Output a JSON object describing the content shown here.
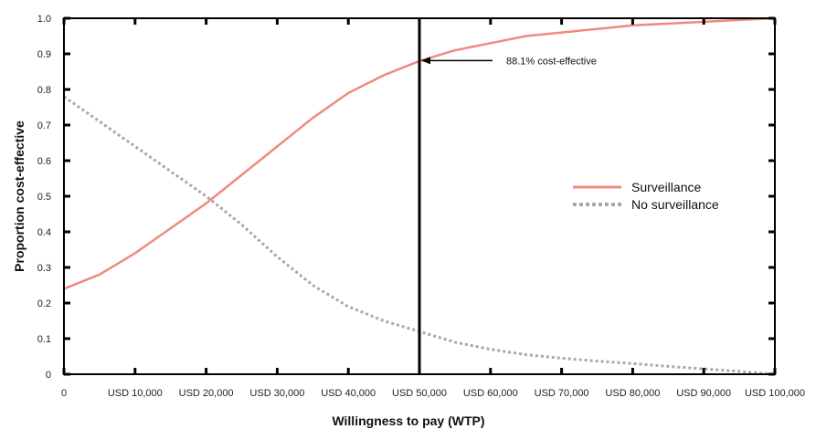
{
  "chart_data": {
    "type": "line",
    "title": "",
    "xlabel": "Willingness to pay (WTP)",
    "ylabel": "Proportion cost-effective",
    "xlim": [
      0,
      100000
    ],
    "ylim": [
      0,
      1.0
    ],
    "x_ticks": [
      0,
      10000,
      20000,
      30000,
      40000,
      50000,
      60000,
      70000,
      80000,
      90000,
      100000
    ],
    "x_tick_labels": [
      "0",
      "USD 10,000",
      "USD 20,000",
      "USD 30,000",
      "USD 40,000",
      "USD 50,000",
      "USD 60,000",
      "USD 70,000",
      "USD 80,000",
      "USD 90,000",
      "USD 100,000"
    ],
    "y_ticks": [
      0,
      0.1,
      0.2,
      0.3,
      0.4,
      0.5,
      0.6,
      0.7,
      0.8,
      0.9,
      1.0
    ],
    "y_tick_labels": [
      "0",
      "0.1",
      "0.2",
      "0.3",
      "0.4",
      "0.5",
      "0.6",
      "0.7",
      "0.8",
      "0.9",
      "1.0"
    ],
    "grid": false,
    "legend_position": "right",
    "x": [
      0,
      5000,
      10000,
      15000,
      20000,
      25000,
      30000,
      35000,
      40000,
      45000,
      50000,
      55000,
      60000,
      65000,
      70000,
      75000,
      80000,
      85000,
      90000,
      95000,
      100000
    ],
    "series": [
      {
        "name": "Surveillance",
        "style": "solid",
        "color": "#ef8a80",
        "values": [
          0.24,
          0.28,
          0.34,
          0.41,
          0.48,
          0.56,
          0.64,
          0.72,
          0.79,
          0.84,
          0.88,
          0.91,
          0.93,
          0.95,
          0.96,
          0.97,
          0.98,
          0.985,
          0.99,
          0.995,
          1.0
        ]
      },
      {
        "name": "No surveillance",
        "style": "dotted",
        "color": "#a8a8a8",
        "values": [
          0.78,
          0.71,
          0.64,
          0.57,
          0.5,
          0.42,
          0.33,
          0.25,
          0.19,
          0.15,
          0.12,
          0.09,
          0.07,
          0.055,
          0.045,
          0.037,
          0.03,
          0.022,
          0.015,
          0.008,
          0.0
        ]
      }
    ],
    "reference_line": {
      "x": 50000,
      "color": "#000000"
    },
    "annotation": {
      "text": "88.1% cost-effective",
      "x": 50000,
      "y": 0.881
    }
  }
}
